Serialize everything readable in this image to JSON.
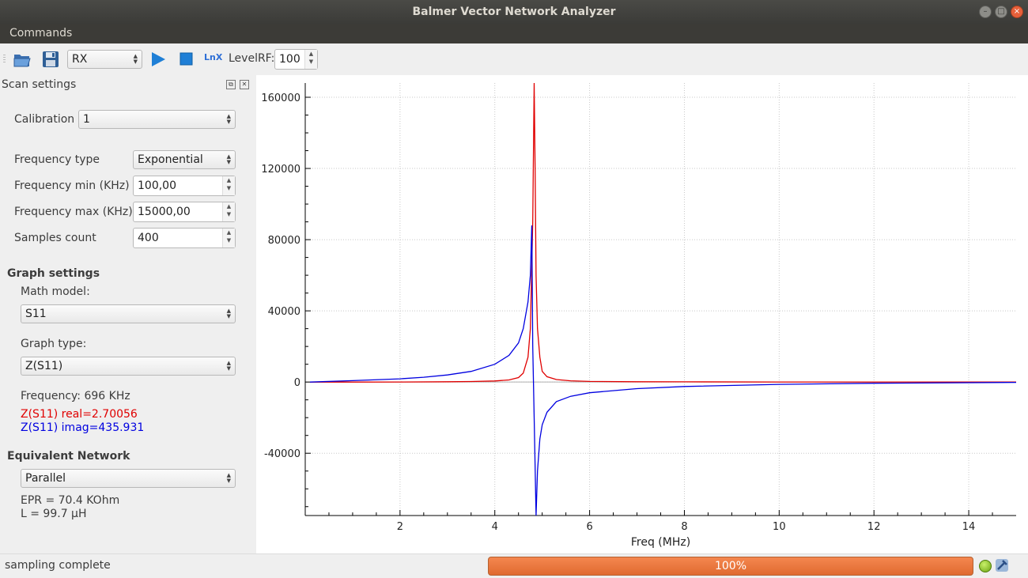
{
  "window": {
    "title": "Balmer Vector Network Analyzer"
  },
  "menu": {
    "commands": "Commands"
  },
  "toolbar": {
    "mode_value": "RX",
    "lnx_label": "LnX",
    "level_label": "LevelRF:",
    "level_value": "100"
  },
  "scan_settings": {
    "title": "Scan settings",
    "calibration_label": "Calibration",
    "calibration_value": "1",
    "freq_type_label": "Frequency type",
    "freq_type_value": "Exponential",
    "freq_min_label": "Frequency min (KHz)",
    "freq_min_value": "100,00",
    "freq_max_label": "Frequency max (KHz)",
    "freq_max_value": "15000,00",
    "samples_label": "Samples count",
    "samples_value": "400"
  },
  "graph_settings": {
    "title": "Graph settings",
    "math_model_label": "Math model:",
    "math_model_value": "S11",
    "graph_type_label": "Graph type:",
    "graph_type_value": "Z(S11)",
    "frequency_readout": "Frequency: 696 KHz",
    "real_readout": "Z(S11) real=2.70056",
    "imag_readout": "Z(S11) imag=435.931",
    "real_color": "#e00000",
    "imag_color": "#0000e0"
  },
  "equivalent_network": {
    "title": "Equivalent Network",
    "model_value": "Parallel",
    "epr": "EPR = 70.4 KOhm",
    "inductance": "L = 99.7 µH"
  },
  "status": {
    "message": "sampling complete",
    "progress_text": "100%",
    "progress_value": 100,
    "accent": "#e8733a"
  },
  "chart_data": {
    "type": "line",
    "xlabel": "Freq (MHz)",
    "ylabel": "",
    "xlim": [
      0,
      15
    ],
    "ylim": [
      -75000,
      168000
    ],
    "x_ticks": [
      2,
      4,
      6,
      8,
      10,
      12,
      14
    ],
    "y_ticks": [
      160000,
      120000,
      80000,
      40000,
      0,
      -40000
    ],
    "y_tick_labels": [
      "160000",
      "120000",
      "80000",
      "40000",
      "0",
      "-40000"
    ],
    "grid": true,
    "series": [
      {
        "color": "#e00000",
        "x": [
          0.1,
          1,
          2,
          3,
          3.5,
          4,
          4.3,
          4.5,
          4.6,
          4.7,
          4.75,
          4.8,
          4.83,
          4.85,
          4.87,
          4.9,
          4.95,
          5.0,
          5.1,
          5.3,
          5.6,
          6,
          7,
          8,
          10,
          12,
          15
        ],
        "y": [
          0,
          0,
          50,
          150,
          300,
          600,
          1200,
          2500,
          5000,
          14000,
          30000,
          90000,
          168000,
          120000,
          60000,
          30000,
          14000,
          6000,
          3000,
          1400,
          700,
          350,
          150,
          100,
          50,
          40,
          30
        ]
      },
      {
        "color": "#0000e0",
        "x": [
          0.1,
          1,
          2,
          2.5,
          3,
          3.5,
          4,
          4.3,
          4.5,
          4.6,
          4.7,
          4.75,
          4.78,
          4.8,
          4.83,
          4.87,
          4.9,
          4.95,
          5.0,
          5.1,
          5.3,
          5.6,
          6,
          7,
          8,
          10,
          12,
          15
        ],
        "y": [
          0,
          800,
          1800,
          2700,
          4000,
          6000,
          10000,
          15000,
          22000,
          30000,
          45000,
          60000,
          88000,
          20000,
          -20000,
          -75000,
          -50000,
          -32000,
          -24000,
          -17000,
          -11000,
          -8000,
          -6000,
          -3700,
          -2500,
          -1300,
          -700,
          -200
        ]
      }
    ]
  }
}
